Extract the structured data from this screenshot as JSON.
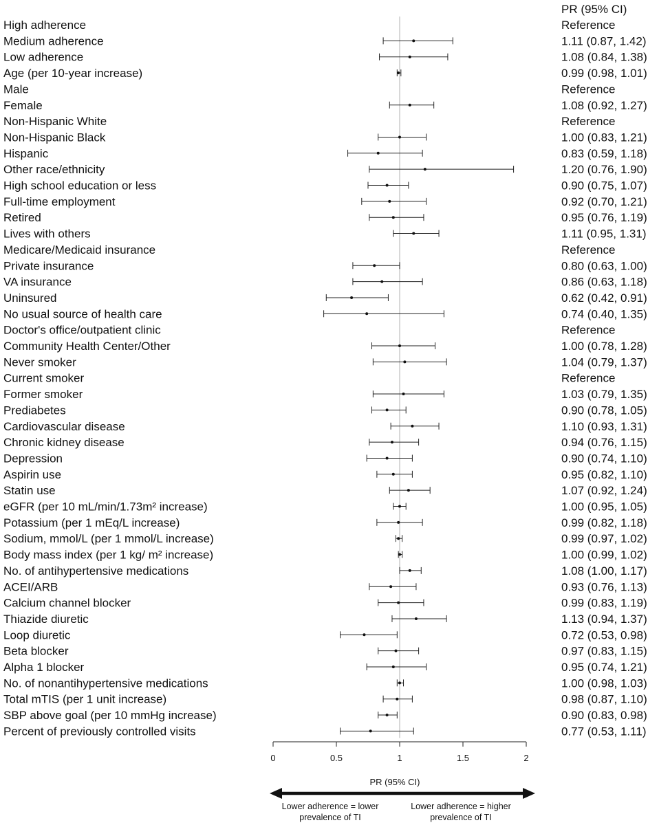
{
  "chart_data": {
    "type": "forest",
    "ci_header": "PR (95% CI)",
    "xlabel": "PR (95% CI)",
    "xlim": [
      0,
      2
    ],
    "xticks": [
      {
        "value": 0,
        "label": "0"
      },
      {
        "value": 0.5,
        "label": "0.5"
      },
      {
        "value": 1,
        "label": "1"
      },
      {
        "value": 1.5,
        "label": "1.5"
      },
      {
        "value": 2,
        "label": "2"
      }
    ],
    "reference_line": 1,
    "direction_left": "Lower adherence = lower prevalence of TI",
    "direction_left_lines": [
      "Lower adherence = lower",
      "prevalence of TI"
    ],
    "direction_right": "Lower adherence = higher prevalence of TI",
    "direction_right_lines": [
      "Lower adherence = higher",
      "prevalence of TI"
    ],
    "rows": [
      {
        "label": "High adherence",
        "ci_text": "Reference"
      },
      {
        "label": "Medium adherence",
        "est": 1.11,
        "lo": 0.87,
        "hi": 1.42,
        "ci_text": "1.11 (0.87, 1.42)"
      },
      {
        "label": "Low adherence",
        "est": 1.08,
        "lo": 0.84,
        "hi": 1.38,
        "ci_text": "1.08 (0.84, 1.38)"
      },
      {
        "label": "Age (per 10-year increase)",
        "est": 0.99,
        "lo": 0.98,
        "hi": 1.01,
        "ci_text": "0.99 (0.98, 1.01)"
      },
      {
        "label": "Male",
        "ci_text": "Reference"
      },
      {
        "label": "Female",
        "est": 1.08,
        "lo": 0.92,
        "hi": 1.27,
        "ci_text": "1.08 (0.92, 1.27)"
      },
      {
        "label": "Non-Hispanic White",
        "ci_text": "Reference"
      },
      {
        "label": "Non-Hispanic Black",
        "est": 1.0,
        "lo": 0.83,
        "hi": 1.21,
        "ci_text": "1.00 (0.83, 1.21)"
      },
      {
        "label": "Hispanic",
        "est": 0.83,
        "lo": 0.59,
        "hi": 1.18,
        "ci_text": "0.83 (0.59, 1.18)"
      },
      {
        "label": "Other race/ethnicity",
        "est": 1.2,
        "lo": 0.76,
        "hi": 1.9,
        "ci_text": "1.20 (0.76, 1.90)"
      },
      {
        "label": "High school education or less",
        "est": 0.9,
        "lo": 0.75,
        "hi": 1.07,
        "ci_text": "0.90 (0.75, 1.07)"
      },
      {
        "label": "Full-time employment",
        "est": 0.92,
        "lo": 0.7,
        "hi": 1.21,
        "ci_text": "0.92 (0.70, 1.21)"
      },
      {
        "label": "Retired",
        "est": 0.95,
        "lo": 0.76,
        "hi": 1.19,
        "ci_text": "0.95 (0.76, 1.19)"
      },
      {
        "label": "Lives with others",
        "est": 1.11,
        "lo": 0.95,
        "hi": 1.31,
        "ci_text": "1.11 (0.95, 1.31)"
      },
      {
        "label": "Medicare/Medicaid insurance",
        "ci_text": "Reference"
      },
      {
        "label": "Private insurance",
        "est": 0.8,
        "lo": 0.63,
        "hi": 1.0,
        "ci_text": "0.80 (0.63, 1.00)"
      },
      {
        "label": "VA insurance",
        "est": 0.86,
        "lo": 0.63,
        "hi": 1.18,
        "ci_text": "0.86 (0.63, 1.18)"
      },
      {
        "label": "Uninsured",
        "est": 0.62,
        "lo": 0.42,
        "hi": 0.91,
        "ci_text": "0.62 (0.42, 0.91)"
      },
      {
        "label": "No usual source of health care",
        "est": 0.74,
        "lo": 0.4,
        "hi": 1.35,
        "ci_text": "0.74 (0.40, 1.35)"
      },
      {
        "label": "Doctor's office/outpatient clinic",
        "ci_text": "Reference"
      },
      {
        "label": "Community Health Center/Other",
        "est": 1.0,
        "lo": 0.78,
        "hi": 1.28,
        "ci_text": "1.00 (0.78, 1.28)"
      },
      {
        "label": "Never smoker",
        "est": 1.04,
        "lo": 0.79,
        "hi": 1.37,
        "ci_text": "1.04 (0.79, 1.37)"
      },
      {
        "label": "Current smoker",
        "ci_text": "Reference"
      },
      {
        "label": "Former smoker",
        "est": 1.03,
        "lo": 0.79,
        "hi": 1.35,
        "ci_text": "1.03 (0.79, 1.35)"
      },
      {
        "label": "Prediabetes",
        "est": 0.9,
        "lo": 0.78,
        "hi": 1.05,
        "ci_text": "0.90 (0.78, 1.05)"
      },
      {
        "label": "Cardiovascular disease",
        "est": 1.1,
        "lo": 0.93,
        "hi": 1.31,
        "ci_text": "1.10 (0.93, 1.31)"
      },
      {
        "label": "Chronic kidney disease",
        "est": 0.94,
        "lo": 0.76,
        "hi": 1.15,
        "ci_text": "0.94 (0.76, 1.15)"
      },
      {
        "label": "Depression",
        "est": 0.9,
        "lo": 0.74,
        "hi": 1.1,
        "ci_text": "0.90 (0.74, 1.10)"
      },
      {
        "label": "Aspirin use",
        "est": 0.95,
        "lo": 0.82,
        "hi": 1.1,
        "ci_text": "0.95 (0.82, 1.10)"
      },
      {
        "label": "Statin use",
        "est": 1.07,
        "lo": 0.92,
        "hi": 1.24,
        "ci_text": "1.07 (0.92, 1.24)"
      },
      {
        "label": "eGFR (per 10 mL/min/1.73m² increase)",
        "est": 1.0,
        "lo": 0.95,
        "hi": 1.05,
        "ci_text": "1.00 (0.95, 1.05)"
      },
      {
        "label": "Potassium (per 1 mEq/L increase)",
        "est": 0.99,
        "lo": 0.82,
        "hi": 1.18,
        "ci_text": "0.99 (0.82, 1.18)"
      },
      {
        "label": "Sodium, mmol/L (per 1 mmol/L increase)",
        "est": 0.99,
        "lo": 0.97,
        "hi": 1.02,
        "ci_text": "0.99 (0.97, 1.02)"
      },
      {
        "label": "Body mass index (per 1 kg/ m² increase)",
        "est": 1.0,
        "lo": 0.99,
        "hi": 1.02,
        "ci_text": "1.00 (0.99, 1.02)"
      },
      {
        "label": "No. of antihypertensive medications",
        "est": 1.08,
        "lo": 1.0,
        "hi": 1.17,
        "ci_text": "1.08 (1.00, 1.17)"
      },
      {
        "label": "ACEI/ARB",
        "est": 0.93,
        "lo": 0.76,
        "hi": 1.13,
        "ci_text": "0.93 (0.76, 1.13)"
      },
      {
        "label": "Calcium channel blocker",
        "est": 0.99,
        "lo": 0.83,
        "hi": 1.19,
        "ci_text": "0.99 (0.83, 1.19)"
      },
      {
        "label": "Thiazide diuretic",
        "est": 1.13,
        "lo": 0.94,
        "hi": 1.37,
        "ci_text": "1.13 (0.94, 1.37)"
      },
      {
        "label": "Loop diuretic",
        "est": 0.72,
        "lo": 0.53,
        "hi": 0.98,
        "ci_text": "0.72 (0.53, 0.98)"
      },
      {
        "label": "Beta blocker",
        "est": 0.97,
        "lo": 0.83,
        "hi": 1.15,
        "ci_text": "0.97 (0.83, 1.15)"
      },
      {
        "label": "Alpha 1 blocker",
        "est": 0.95,
        "lo": 0.74,
        "hi": 1.21,
        "ci_text": "0.95 (0.74, 1.21)"
      },
      {
        "label": "No. of nonantihypertensive medications",
        "est": 1.0,
        "lo": 0.98,
        "hi": 1.03,
        "ci_text": "1.00 (0.98, 1.03)"
      },
      {
        "label": "Total mTIS (per 1 unit increase)",
        "est": 0.98,
        "lo": 0.87,
        "hi": 1.1,
        "ci_text": "0.98 (0.87, 1.10)"
      },
      {
        "label": "SBP above goal (per 10 mmHg increase)",
        "est": 0.9,
        "lo": 0.83,
        "hi": 0.98,
        "ci_text": "0.90 (0.83, 0.98)"
      },
      {
        "label": "Percent of previously controlled visits",
        "est": 0.77,
        "lo": 0.53,
        "hi": 1.11,
        "ci_text": "0.77 (0.53, 1.11)"
      }
    ]
  }
}
